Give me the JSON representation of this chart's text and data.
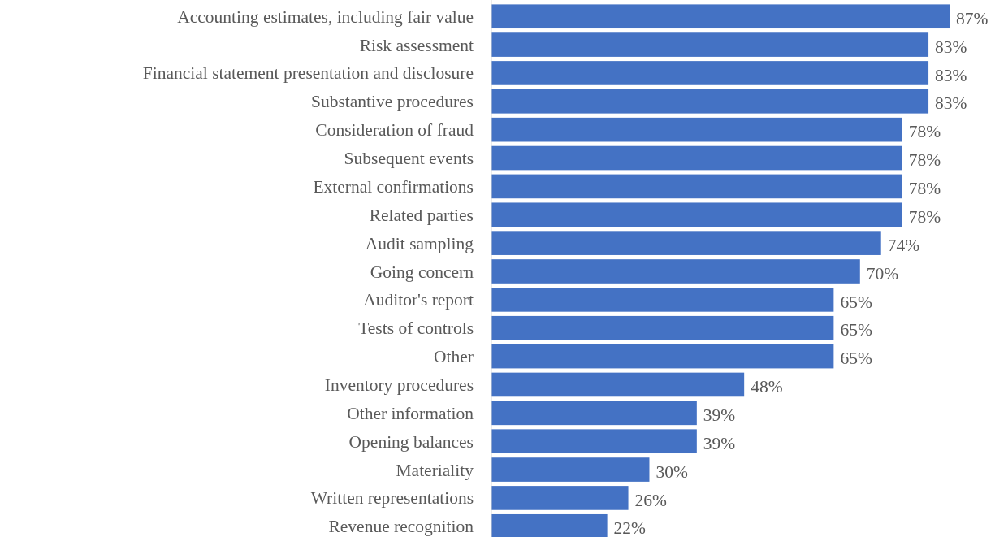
{
  "chart_data": {
    "type": "bar",
    "orientation": "horizontal",
    "categories": [
      "Accounting estimates, including fair value",
      "Risk assessment",
      "Financial statement presentation and disclosure",
      "Substantive procedures",
      "Consideration of fraud",
      "Subsequent events",
      "External confirmations",
      "Related parties",
      "Audit sampling",
      "Going concern",
      "Auditor's report",
      "Tests of controls",
      "Other",
      "Inventory procedures",
      "Other information",
      "Opening balances",
      "Materiality",
      "Written representations",
      "Revenue recognition"
    ],
    "values": [
      87,
      83,
      83,
      83,
      78,
      78,
      78,
      78,
      74,
      70,
      65,
      65,
      65,
      48,
      39,
      39,
      30,
      26,
      22
    ],
    "value_labels": [
      "87%",
      "83%",
      "83%",
      "83%",
      "78%",
      "78%",
      "78%",
      "78%",
      "74%",
      "70%",
      "65%",
      "65%",
      "65%",
      "48%",
      "39%",
      "39%",
      "30%",
      "26%",
      "22%"
    ],
    "color": "#4472c4"
  }
}
